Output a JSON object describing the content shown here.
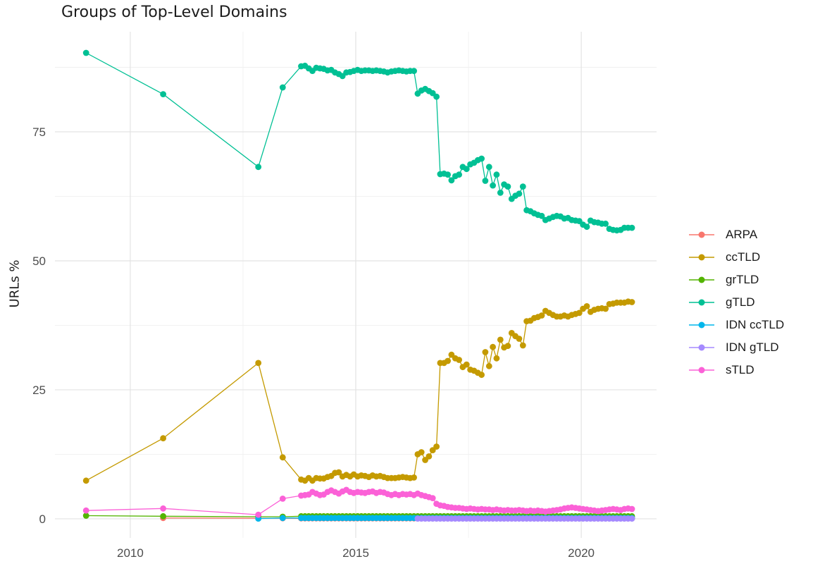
{
  "chart_data": {
    "type": "line",
    "title": "Groups of Top-Level Domains",
    "xlabel": "",
    "ylabel": "URLs %",
    "x_ticks": [
      2010,
      2015,
      2020
    ],
    "x_tick_labels": [
      "2010",
      "2015",
      "2020"
    ],
    "x_minor_gridlines": [
      2012.5,
      2017.5
    ],
    "y_ticks": [
      0,
      25,
      50,
      75
    ],
    "y_tick_labels": [
      "0",
      "25",
      "50",
      "75"
    ],
    "y_minor_gridlines": [
      12.5,
      37.5,
      62.5,
      87.5
    ],
    "xlim": [
      2008.33,
      2021.67
    ],
    "ylim": [
      -3.7,
      94.4
    ],
    "grid": true,
    "legend_position": "right",
    "colors": {
      "major_gridline": "#e3e3e3",
      "minor_gridline": "#f0f0f0",
      "tick_label": "#4d4d4d",
      "title_text": "#1c1c1c"
    },
    "series": [
      {
        "name": "ARPA",
        "color": "#F8766D",
        "early": [
          [
            2010.73,
            0.15
          ],
          [
            2012.84,
            0.1
          ],
          [
            2013.38,
            0.1
          ]
        ],
        "monthly_start": 2013.79,
        "monthly_step": 0.08333,
        "monthly": {
          "const": 0.08,
          "count": 89
        }
      },
      {
        "name": "ccTLD",
        "color": "#C49A00",
        "early": [
          [
            2009.02,
            7.4
          ],
          [
            2010.73,
            15.6
          ],
          [
            2012.84,
            30.2
          ],
          [
            2013.38,
            11.9
          ]
        ],
        "monthly_start": 2013.79,
        "monthly_step": 0.08333,
        "monthly": [
          7.6,
          7.4,
          7.9,
          7.4,
          7.9,
          7.8,
          7.8,
          8.1,
          8.3,
          8.9,
          9.0,
          8.2,
          8.5,
          8.2,
          8.6,
          8.2,
          8.4,
          8.3,
          8.1,
          8.4,
          8.2,
          8.3,
          8.1,
          7.9,
          7.9,
          7.9,
          8.0,
          8.1,
          8.0,
          7.9,
          8.0,
          12.5,
          12.9,
          11.4,
          12.1,
          13.3,
          14.0,
          30.2,
          30.2,
          30.6,
          31.8,
          31.1,
          30.8,
          29.4,
          29.9,
          28.9,
          28.7,
          28.3,
          27.9,
          32.3,
          29.6,
          33.3,
          31.1,
          34.7,
          33.2,
          33.5,
          36.0,
          35.4,
          34.9,
          33.6,
          38.3,
          38.4,
          38.9,
          39.1,
          39.4,
          40.3,
          39.9,
          39.5,
          39.2,
          39.2,
          39.4,
          39.2,
          39.5,
          39.7,
          39.9,
          40.7,
          41.2,
          40.1,
          40.5,
          40.7,
          40.8,
          40.7,
          41.6,
          41.7,
          41.9,
          41.9,
          41.9,
          42.1,
          42.0
        ]
      },
      {
        "name": "grTLD",
        "color": "#53B400",
        "early": [
          [
            2009.02,
            0.6
          ],
          [
            2010.73,
            0.5
          ],
          [
            2012.84,
            0.4
          ],
          [
            2013.38,
            0.4
          ]
        ],
        "monthly_start": 2013.79,
        "monthly_step": 0.08333,
        "monthly": {
          "const": 0.5,
          "count": 89
        }
      },
      {
        "name": "gTLD",
        "color": "#00C094",
        "early": [
          [
            2009.02,
            90.3
          ],
          [
            2010.73,
            82.3
          ],
          [
            2012.84,
            68.2
          ],
          [
            2013.38,
            83.6
          ]
        ],
        "monthly_start": 2013.79,
        "monthly_step": 0.08333,
        "monthly": [
          87.7,
          87.8,
          87.3,
          86.8,
          87.4,
          87.3,
          87.2,
          86.9,
          87.0,
          86.5,
          86.2,
          85.8,
          86.5,
          86.6,
          86.8,
          87.0,
          86.8,
          86.9,
          86.9,
          86.8,
          86.9,
          86.8,
          86.7,
          86.5,
          86.7,
          86.8,
          86.9,
          86.8,
          86.7,
          86.8,
          86.8,
          82.4,
          83.0,
          83.3,
          82.9,
          82.5,
          81.8,
          66.8,
          66.9,
          66.7,
          65.6,
          66.4,
          66.7,
          68.2,
          67.8,
          68.7,
          69.0,
          69.5,
          69.8,
          65.5,
          68.2,
          64.6,
          66.7,
          63.2,
          64.8,
          64.4,
          62.0,
          62.6,
          63.0,
          64.4,
          59.8,
          59.6,
          59.2,
          58.9,
          58.7,
          57.9,
          58.2,
          58.5,
          58.7,
          58.6,
          58.2,
          58.3,
          57.9,
          57.8,
          57.7,
          57.0,
          56.6,
          57.8,
          57.5,
          57.4,
          57.2,
          57.2,
          56.2,
          56.0,
          55.9,
          56.0,
          56.4,
          56.4,
          56.4
        ]
      },
      {
        "name": "IDN ccTLD",
        "color": "#00B6EB",
        "early": [
          [
            2012.84,
            0.05
          ],
          [
            2013.38,
            0.15
          ]
        ],
        "monthly_start": 2013.79,
        "monthly_step": 0.08333,
        "monthly": {
          "const": 0.15,
          "count": 89
        }
      },
      {
        "name": "IDN gTLD",
        "color": "#A58AFF",
        "early": [],
        "monthly_start": 2016.373,
        "monthly_step": 0.08333,
        "monthly": {
          "const": 0.05,
          "count": 58
        }
      },
      {
        "name": "sTLD",
        "color": "#FB61D7",
        "early": [
          [
            2009.02,
            1.6
          ],
          [
            2010.73,
            2.0
          ],
          [
            2012.84,
            0.8
          ],
          [
            2013.38,
            3.9
          ]
        ],
        "monthly_start": 2013.79,
        "monthly_step": 0.08333,
        "monthly": [
          4.5,
          4.6,
          4.7,
          5.2,
          4.9,
          4.6,
          4.7,
          5.2,
          5.5,
          5.2,
          4.9,
          5.3,
          5.6,
          5.2,
          5.0,
          5.2,
          5.1,
          5.0,
          5.2,
          5.3,
          5.0,
          5.2,
          5.1,
          4.8,
          4.6,
          4.8,
          4.6,
          4.8,
          4.7,
          4.8,
          4.6,
          4.9,
          4.6,
          4.4,
          4.2,
          4.0,
          2.9,
          2.6,
          2.5,
          2.3,
          2.2,
          2.1,
          2.1,
          2.0,
          1.9,
          2.0,
          1.9,
          1.8,
          1.9,
          1.8,
          1.8,
          1.7,
          1.8,
          1.7,
          1.6,
          1.7,
          1.6,
          1.6,
          1.7,
          1.6,
          1.5,
          1.6,
          1.5,
          1.6,
          1.5,
          1.4,
          1.5,
          1.6,
          1.7,
          1.8,
          2.0,
          2.1,
          2.2,
          2.1,
          2.0,
          1.9,
          1.8,
          1.7,
          1.6,
          1.5,
          1.6,
          1.7,
          1.8,
          1.9,
          1.8,
          1.7,
          1.9,
          2.0,
          1.9
        ]
      }
    ]
  }
}
